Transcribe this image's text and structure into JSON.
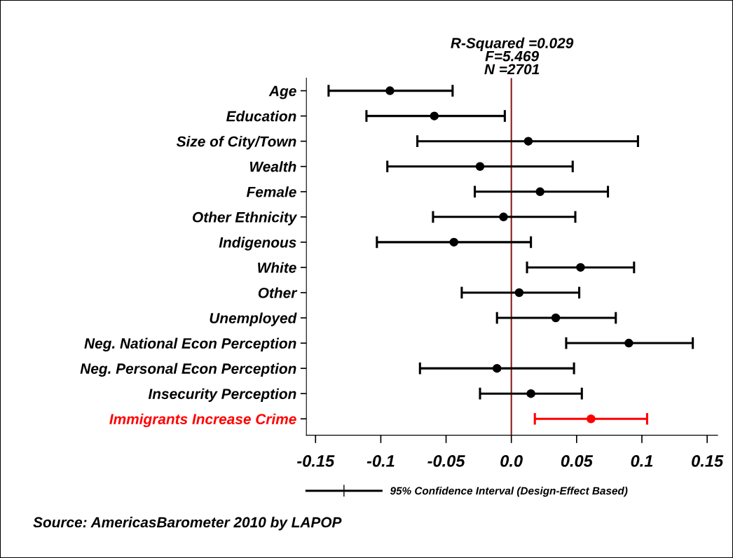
{
  "chart_data": {
    "type": "scatter",
    "orientation": "horizontal",
    "title": "R-Squared =0.029\nF=5.469\nN =2701",
    "categories": [
      "Age",
      "Education",
      "Size of City/Town",
      "Wealth",
      "Female",
      "Other Ethnicity",
      "Indigenous",
      "White",
      "Other",
      "Unemployed",
      "Neg. National Econ Perception",
      "Neg. Personal Econ Perception",
      "Insecurity Perception",
      "Immigrants Increase Crime"
    ],
    "series": [
      {
        "name": "95% Confidence Interval (Design-Effect Based)",
        "color": "#000000",
        "colors": [
          "#000000",
          "#000000",
          "#000000",
          "#000000",
          "#000000",
          "#000000",
          "#000000",
          "#000000",
          "#000000",
          "#000000",
          "#000000",
          "#000000",
          "#000000",
          "#ff0000"
        ],
        "values": [
          -0.093,
          -0.059,
          0.013,
          -0.024,
          0.022,
          -0.006,
          -0.044,
          0.053,
          0.006,
          0.034,
          0.09,
          -0.011,
          0.015,
          0.061
        ],
        "errors": [
          [
            -0.14,
            -0.045
          ],
          [
            -0.111,
            -0.005
          ],
          [
            -0.072,
            0.097
          ],
          [
            -0.095,
            0.047
          ],
          [
            -0.028,
            0.074
          ],
          [
            -0.06,
            0.049
          ],
          [
            -0.103,
            0.015
          ],
          [
            0.012,
            0.094
          ],
          [
            -0.038,
            0.052
          ],
          [
            -0.011,
            0.08
          ],
          [
            0.042,
            0.139
          ],
          [
            -0.07,
            0.048
          ],
          [
            -0.024,
            0.054
          ],
          [
            0.018,
            0.104
          ]
        ]
      }
    ],
    "xlim": [
      -0.157,
      0.158
    ],
    "xticks": [
      -0.15,
      -0.1,
      -0.05,
      {
        "value": 0,
        "label": "0.0"
      },
      0.05,
      0.1,
      0.15
    ],
    "ref_lines": [
      {
        "axis": "x",
        "value": 0,
        "color": "#8b1a1a"
      }
    ],
    "marker": "circle",
    "grid": false,
    "legend": "bottom",
    "annotations": [
      "Source: AmericasBarometer 2010 by LAPOP"
    ]
  }
}
